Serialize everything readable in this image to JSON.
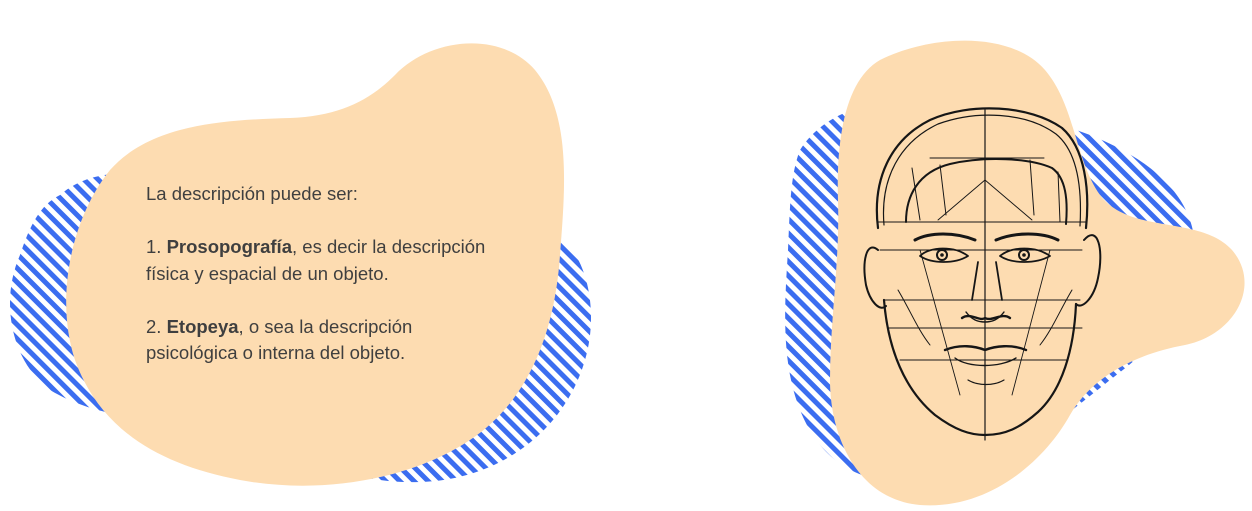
{
  "colors": {
    "blob": "#fddcb1",
    "stripes": "#3b6df0",
    "text": "#3f3f3f",
    "ink": "#161616",
    "background": "#ffffff"
  },
  "text_card": {
    "intro": "La descripción puede ser:",
    "item1": {
      "number": "1. ",
      "term": "Prosopografía",
      "rest": ", es decir la descripción física y espacial de un objeto."
    },
    "item2": {
      "number": "2. ",
      "term": "Etopeya",
      "rest": ", o sea la descripción psicológica o interna del objeto."
    }
  },
  "illustration": {
    "subject": "face-sketch-icon"
  }
}
